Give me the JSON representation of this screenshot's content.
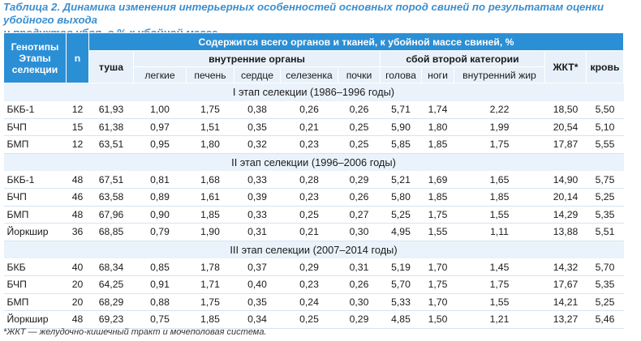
{
  "caption": {
    "line1": "Таблица 2. Динамика изменения интерьерных особенностей основных пород свиней по результатам оценки убойного выхода",
    "line2": "и продуктов убоя, в % к убойной массе"
  },
  "header": {
    "genotype_line1": "Генотипы",
    "genotype_line2": "Этапы",
    "genotype_line3": "селекции",
    "n": "n",
    "group": "Содержится всего органов и тканей, к убойной массе свиней, %",
    "carcass": "туша",
    "internal_organs": "внутренние органы",
    "second_category": "сбой второй категории",
    "gi_tract": "ЖКТ*",
    "blood": "кровь",
    "lungs": "легкие",
    "liver": "печень",
    "heart": "сердце",
    "spleen": "селезенка",
    "kidneys": "почки",
    "head": "голова",
    "legs": "ноги",
    "internal_fat": "внутренний жир"
  },
  "stages": [
    {
      "title": "I этап селекции (1986–1996 годы)",
      "rows": [
        {
          "breed": "БКБ-1",
          "n": "12",
          "carcass": "61,93",
          "lungs": "1,00",
          "liver": "1,75",
          "heart": "0,38",
          "spleen": "0,26",
          "kidneys": "0,26",
          "head": "5,71",
          "legs": "1,74",
          "fat": "2,22",
          "gi": "18,50",
          "blood": "5,50"
        },
        {
          "breed": "БЧП",
          "n": "15",
          "carcass": "61,38",
          "lungs": "0,97",
          "liver": "1,51",
          "heart": "0,35",
          "spleen": "0,21",
          "kidneys": "0,25",
          "head": "5,90",
          "legs": "1,80",
          "fat": "1,99",
          "gi": "20,54",
          "blood": "5,10"
        },
        {
          "breed": "БМП",
          "n": "12",
          "carcass": "63,51",
          "lungs": "0,95",
          "liver": "1,80",
          "heart": "0,32",
          "spleen": "0,23",
          "kidneys": "0,25",
          "head": "5,85",
          "legs": "1,85",
          "fat": "1,75",
          "gi": "17,87",
          "blood": "5,55"
        }
      ]
    },
    {
      "title": "II этап селекции (1996–2006 годы)",
      "rows": [
        {
          "breed": "БКБ-1",
          "n": "48",
          "carcass": "67,51",
          "lungs": "0,81",
          "liver": "1,68",
          "heart": "0,33",
          "spleen": "0,28",
          "kidneys": "0,29",
          "head": "5,21",
          "legs": "1,69",
          "fat": "1,65",
          "gi": "14,90",
          "blood": "5,75"
        },
        {
          "breed": "БЧП",
          "n": "46",
          "carcass": "63,58",
          "lungs": "0,89",
          "liver": "1,61",
          "heart": "0,39",
          "spleen": "0,23",
          "kidneys": "0,26",
          "head": "5,80",
          "legs": "1,85",
          "fat": "1,85",
          "gi": "20,14",
          "blood": "5,25"
        },
        {
          "breed": "БМП",
          "n": "48",
          "carcass": "67,96",
          "lungs": "0,90",
          "liver": "1,85",
          "heart": "0,33",
          "spleen": "0,25",
          "kidneys": "0,27",
          "head": "5,25",
          "legs": "1,75",
          "fat": "1,55",
          "gi": "14,29",
          "blood": "5,35"
        },
        {
          "breed": "Йоркшир",
          "n": "36",
          "carcass": "68,85",
          "lungs": "0,79",
          "liver": "1,90",
          "heart": "0,31",
          "spleen": "0,21",
          "kidneys": "0,30",
          "head": "4,95",
          "legs": "1,55",
          "fat": "1,11",
          "gi": "13,88",
          "blood": "5,51"
        }
      ]
    },
    {
      "title": "III этап селекции (2007–2014 годы)",
      "rows": [
        {
          "breed": "БКБ",
          "n": "40",
          "carcass": "68,34",
          "lungs": "0,85",
          "liver": "1,78",
          "heart": "0,37",
          "spleen": "0,29",
          "kidneys": "0,31",
          "head": "5,19",
          "legs": "1,70",
          "fat": "1,45",
          "gi": "14,32",
          "blood": "5,70"
        },
        {
          "breed": "БЧП",
          "n": "20",
          "carcass": "64,25",
          "lungs": "0,91",
          "liver": "1,71",
          "heart": "0,40",
          "spleen": "0,23",
          "kidneys": "0,26",
          "head": "5,70",
          "legs": "1,75",
          "fat": "1,75",
          "gi": "17,67",
          "blood": "5,35"
        },
        {
          "breed": "БМП",
          "n": "20",
          "carcass": "68,29",
          "lungs": "0,88",
          "liver": "1,75",
          "heart": "0,35",
          "spleen": "0,24",
          "kidneys": "0,30",
          "head": "5,33",
          "legs": "1,70",
          "fat": "1,55",
          "gi": "14,21",
          "blood": "5,25"
        },
        {
          "breed": "Йоркшир",
          "n": "48",
          "carcass": "69,23",
          "lungs": "0,75",
          "liver": "1,85",
          "heart": "0,34",
          "spleen": "0,25",
          "kidneys": "0,29",
          "head": "4,85",
          "legs": "1,50",
          "fat": "1,21",
          "gi": "13,27",
          "blood": "5,46"
        }
      ]
    }
  ],
  "footnote": "*ЖКТ — желудочно-кишечный тракт и мочеполовая система."
}
